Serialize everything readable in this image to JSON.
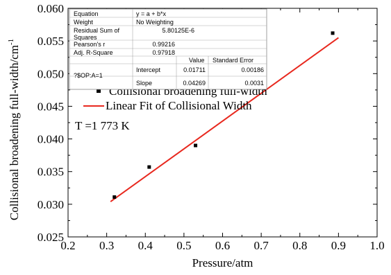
{
  "chart_data": {
    "type": "scatter",
    "xlabel": "Pressure/atm",
    "ylabel": "Collisional broadening full-width/cm",
    "ylabel_superscript": "-1",
    "xlim": [
      0.2,
      1.0
    ],
    "ylim": [
      0.025,
      0.06
    ],
    "x_ticks": [
      "0.2",
      "0.3",
      "0.4",
      "0.5",
      "0.6",
      "0.7",
      "0.8",
      "0.9",
      "1.0"
    ],
    "y_ticks": [
      "0.025",
      "0.030",
      "0.035",
      "0.040",
      "0.045",
      "0.050",
      "0.055",
      "0.060"
    ],
    "series": [
      {
        "name": "Collisional broadening full-width",
        "kind": "scatter",
        "color": "#000000",
        "x": [
          0.32,
          0.41,
          0.53,
          0.885
        ],
        "y": [
          0.0311,
          0.0357,
          0.039,
          0.0562
        ]
      },
      {
        "name": "Linear Fit of Collisional Width",
        "kind": "line",
        "color": "#e8281e",
        "x": [
          0.31,
          0.9
        ],
        "y": [
          0.0304,
          0.0555
        ]
      }
    ],
    "annotation": "T =1 773 K",
    "stats_table": {
      "rows": [
        [
          "Equation",
          "y = a + b*x"
        ],
        [
          "Weight",
          "No Weighting"
        ],
        [
          "Residual Sum of Squares",
          "5.80125E-6"
        ],
        [
          "Pearson's r",
          "0.99216"
        ],
        [
          "Adj. R-Square",
          "0.97918"
        ]
      ],
      "param_header": [
        "Value",
        "Standard Error"
      ],
      "group_label": "?$OP:A=1",
      "params": [
        [
          "Intercept",
          "0.01711",
          "0.00186"
        ],
        [
          "Slope",
          "0.04269",
          "0.0031"
        ]
      ]
    }
  }
}
